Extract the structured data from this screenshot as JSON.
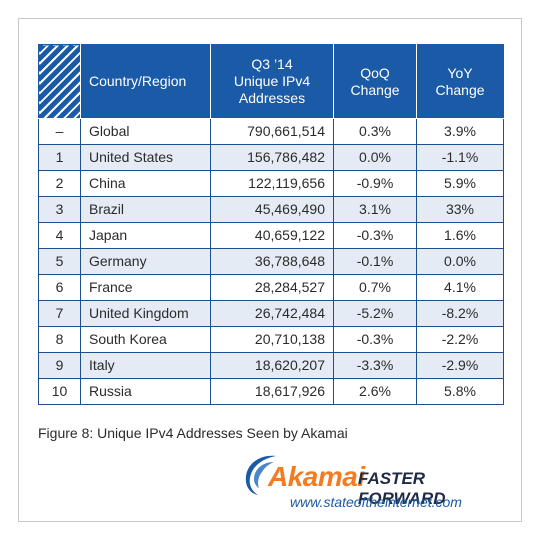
{
  "table": {
    "headers": {
      "country": "Country/Region",
      "addresses_line1": "Q3 ’14",
      "addresses_line2": "Unique IPv4",
      "addresses_line3": "Addresses",
      "qoq_line1": "QoQ",
      "qoq_line2": "Change",
      "yoy_line1": "YoY",
      "yoy_line2": "Change"
    },
    "rows": [
      {
        "rank": "–",
        "country": "Global",
        "addresses": "790,661,514",
        "qoq": "0.3%",
        "yoy": "3.9%"
      },
      {
        "rank": "1",
        "country": "United States",
        "addresses": "156,786,482",
        "qoq": "0.0%",
        "yoy": "-1.1%"
      },
      {
        "rank": "2",
        "country": "China",
        "addresses": "122,119,656",
        "qoq": "-0.9%",
        "yoy": "5.9%"
      },
      {
        "rank": "3",
        "country": "Brazil",
        "addresses": "45,469,490",
        "qoq": "3.1%",
        "yoy": "33%"
      },
      {
        "rank": "4",
        "country": "Japan",
        "addresses": "40,659,122",
        "qoq": "-0.3%",
        "yoy": "1.6%"
      },
      {
        "rank": "5",
        "country": "Germany",
        "addresses": "36,788,648",
        "qoq": "-0.1%",
        "yoy": "0.0%"
      },
      {
        "rank": "6",
        "country": "France",
        "addresses": "28,284,527",
        "qoq": "0.7%",
        "yoy": "4.1%"
      },
      {
        "rank": "7",
        "country": "United Kingdom",
        "addresses": "26,742,484",
        "qoq": "-5.2%",
        "yoy": "-8.2%"
      },
      {
        "rank": "8",
        "country": "South Korea",
        "addresses": "20,710,138",
        "qoq": "-0.3%",
        "yoy": "-2.2%"
      },
      {
        "rank": "9",
        "country": "Italy",
        "addresses": "18,620,207",
        "qoq": "-3.3%",
        "yoy": "-2.9%"
      },
      {
        "rank": "10",
        "country": "Russia",
        "addresses": "18,617,926",
        "qoq": "2.6%",
        "yoy": "5.8%"
      }
    ]
  },
  "caption": "Figure 8: Unique IPv4 Addresses Seen by Akamai",
  "brand": {
    "name": "Akamai",
    "tagline": "FASTER FORWARD",
    "url": "www.stateoftheinternet.com",
    "logo_icon": "akamai-swoosh-icon",
    "colors": {
      "orange": "#f47b20",
      "navy": "#1f2a44",
      "blue": "#1a5aa6"
    }
  },
  "colors": {
    "header_blue": "#1a5aa6",
    "row_alt": "#e4ebf4"
  }
}
